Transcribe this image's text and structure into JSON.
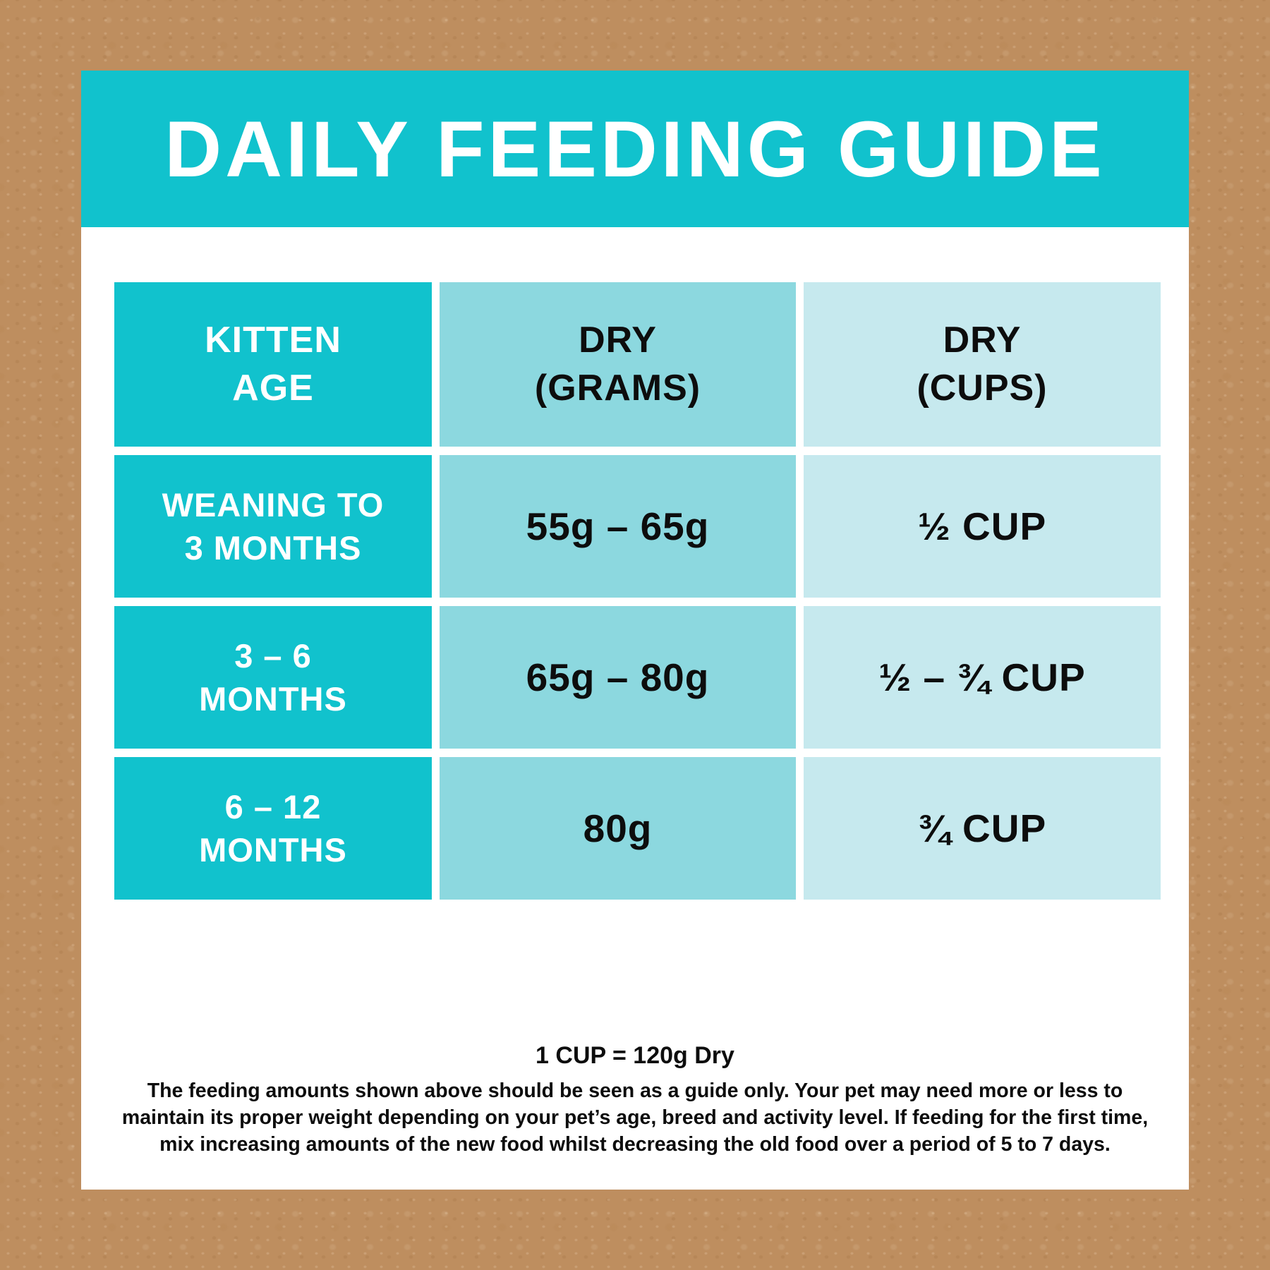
{
  "colors": {
    "bg": "#BE8E5F",
    "card": "#FFFFFF",
    "teal": "#11C2CD",
    "teal_med": "#8CD8DF",
    "teal_light": "#C6E9EE",
    "ink": "#0D0D0D"
  },
  "banner": {
    "title": "DAILY FEEDING GUIDE"
  },
  "table": {
    "headers": [
      {
        "lines": [
          "KITTEN",
          "AGE"
        ]
      },
      {
        "lines": [
          "DRY",
          "(GRAMS)"
        ]
      },
      {
        "lines": [
          "DRY",
          "(CUPS)"
        ]
      }
    ],
    "rows": [
      {
        "age_lines": [
          "WEANING TO",
          "3 MONTHS"
        ],
        "dry_grams": "55g – 65g",
        "dry_cups": "½ CUP"
      },
      {
        "age_lines": [
          "3 – 6",
          "MONTHS"
        ],
        "dry_grams": "65g – 80g",
        "dry_cups": "½ – ¾ CUP"
      },
      {
        "age_lines": [
          "6 – 12",
          "MONTHS"
        ],
        "dry_grams": "80g",
        "dry_cups": "¾ CUP"
      }
    ]
  },
  "footer": {
    "heading": "1 CUP = 120g Dry",
    "lines": [
      "The feeding amounts shown above should be seen as a guide only. Your pet may need more or less to",
      "maintain its proper weight depending on your pet’s age, breed and activity level. If feeding for the first time,",
      "mix increasing amounts of the new food whilst decreasing the old food over a period of 5 to 7 days."
    ]
  },
  "chart_data": {
    "type": "table",
    "title": "DAILY FEEDING GUIDE",
    "columns": [
      "KITTEN AGE",
      "DRY (GRAMS)",
      "DRY (CUPS)"
    ],
    "rows": [
      [
        "WEANING TO 3 MONTHS",
        "55g – 65g",
        "½ CUP"
      ],
      [
        "3 – 6 MONTHS",
        "65g – 80g",
        "½ – ¾ CUP"
      ],
      [
        "6 – 12 MONTHS",
        "80g",
        "¾ CUP"
      ]
    ],
    "note": "1 CUP = 120g Dry"
  }
}
